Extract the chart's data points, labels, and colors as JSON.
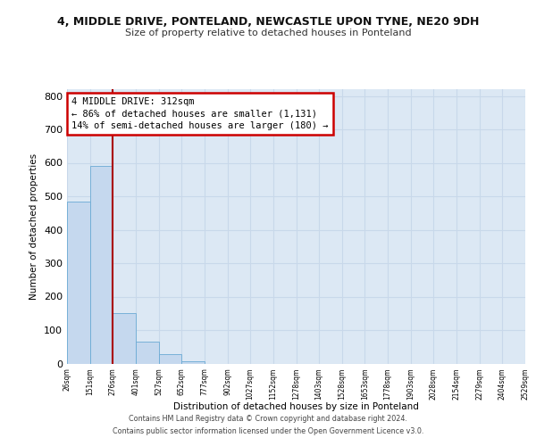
{
  "title": "4, MIDDLE DRIVE, PONTELAND, NEWCASTLE UPON TYNE, NE20 9DH",
  "subtitle": "Size of property relative to detached houses in Ponteland",
  "xlabel": "Distribution of detached houses by size in Ponteland",
  "ylabel": "Number of detached properties",
  "bar_values": [
    485,
    590,
    150,
    65,
    27,
    8,
    0,
    0,
    0,
    0,
    0,
    0,
    0,
    0,
    0,
    0,
    0,
    0,
    0,
    0
  ],
  "bin_labels": [
    "26sqm",
    "151sqm",
    "276sqm",
    "401sqm",
    "527sqm",
    "652sqm",
    "777sqm",
    "902sqm",
    "1027sqm",
    "1152sqm",
    "1278sqm",
    "1403sqm",
    "1528sqm",
    "1653sqm",
    "1778sqm",
    "1903sqm",
    "2028sqm",
    "2154sqm",
    "2279sqm",
    "2404sqm",
    "2529sqm"
  ],
  "bar_color": "#c5d8ee",
  "bar_edge_color": "#6aaad4",
  "vline_x": 2.0,
  "vline_color": "#aa0000",
  "annotation_text": "4 MIDDLE DRIVE: 312sqm\n← 86% of detached houses are smaller (1,131)\n14% of semi-detached houses are larger (180) →",
  "annotation_box_color": "#cc0000",
  "ylim": [
    0,
    820
  ],
  "yticks": [
    0,
    100,
    200,
    300,
    400,
    500,
    600,
    700,
    800
  ],
  "grid_color": "#c8d8ea",
  "bg_color": "#dce8f4",
  "footer_line1": "Contains HM Land Registry data © Crown copyright and database right 2024.",
  "footer_line2": "Contains public sector information licensed under the Open Government Licence v3.0."
}
